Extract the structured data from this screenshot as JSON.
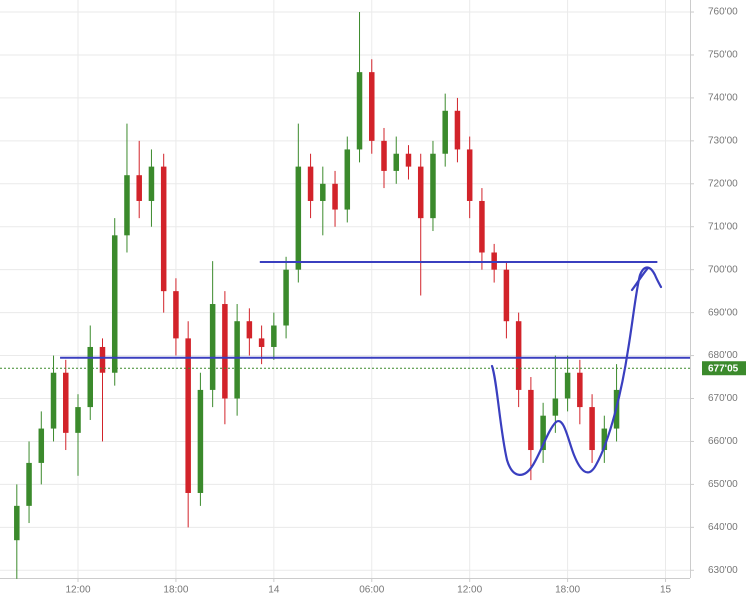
{
  "chart_data": {
    "type": "candlestick",
    "x": [
      8.25,
      9,
      9.75,
      10.5,
      11.25,
      12,
      12.75,
      13.5,
      14.25,
      15,
      15.75,
      16.5,
      17.25,
      18,
      18.75,
      19.5,
      20.25,
      21,
      21.75,
      22.5,
      23.25,
      24,
      24.75,
      25.5,
      26.25,
      27,
      27.75,
      28.5,
      29.25,
      30,
      30.75,
      31.5,
      32.25,
      33,
      33.75,
      34.5,
      35.25,
      36,
      36.75,
      37.5,
      38.25,
      39,
      39.75,
      40.5,
      41.25,
      42,
      42.75,
      43.5,
      44.25,
      45
    ],
    "open": [
      637,
      645,
      655,
      663,
      676,
      662,
      668,
      682,
      676,
      708,
      722,
      716,
      724,
      695,
      684,
      648,
      672,
      692,
      670,
      688,
      684,
      682,
      687,
      700,
      724,
      716,
      720,
      714,
      728,
      746,
      730,
      723,
      727,
      724,
      712,
      727,
      737,
      728,
      716,
      704,
      700,
      688,
      672,
      658,
      666,
      670,
      676,
      668,
      658,
      663
    ],
    "high": [
      650,
      660,
      667,
      680,
      679,
      671,
      687,
      684,
      712,
      734,
      730,
      728,
      727,
      698,
      688,
      676,
      702,
      695,
      692,
      691,
      687,
      690,
      703,
      734,
      727,
      724,
      723,
      731,
      760,
      749,
      733,
      731,
      729,
      727,
      730,
      741,
      740,
      731,
      719,
      706,
      702,
      690,
      675,
      669,
      680,
      680,
      679,
      671,
      666,
      678
    ],
    "low": [
      628,
      641,
      650,
      660,
      658,
      652,
      665,
      660,
      673,
      704,
      712,
      710,
      690,
      680,
      640,
      645,
      668,
      664,
      666,
      680,
      678,
      679,
      684,
      697,
      712,
      708,
      710,
      711,
      725,
      727,
      719,
      720,
      721,
      694,
      709,
      724,
      725,
      712,
      700,
      697,
      684,
      668,
      651,
      655,
      662,
      667,
      664,
      655,
      655,
      660
    ],
    "close": [
      645,
      655,
      663,
      676,
      662,
      668,
      682,
      676,
      708,
      722,
      716,
      724,
      695,
      684,
      648,
      672,
      692,
      670,
      688,
      684,
      682,
      687,
      700,
      724,
      716,
      720,
      714,
      728,
      746,
      730,
      723,
      727,
      724,
      712,
      727,
      737,
      728,
      716,
      704,
      700,
      688,
      672,
      658,
      666,
      670,
      676,
      668,
      658,
      663,
      672
    ],
    "up_color": "#3b8a2c",
    "down_color": "#d2232a",
    "xlim": [
      7.22,
      49.5
    ],
    "xticks": [
      {
        "value": 12,
        "label": "12:00"
      },
      {
        "value": 18,
        "label": "18:00"
      },
      {
        "value": 24,
        "label": "14"
      },
      {
        "value": 30,
        "label": "06:00"
      },
      {
        "value": 36,
        "label": "12:00"
      },
      {
        "value": 42,
        "label": "18:00"
      },
      {
        "value": 48,
        "label": "15"
      }
    ],
    "ylim": [
      628.2,
      762.8
    ],
    "yticks": [
      {
        "value": 630,
        "label": "630'00"
      },
      {
        "value": 640,
        "label": "640'00"
      },
      {
        "value": 650,
        "label": "650'00"
      },
      {
        "value": 660,
        "label": "660'00"
      },
      {
        "value": 670,
        "label": "670'00"
      },
      {
        "value": 680,
        "label": "680'00"
      },
      {
        "value": 690,
        "label": "690'00"
      },
      {
        "value": 700,
        "label": "700'00"
      },
      {
        "value": 710,
        "label": "710'00"
      },
      {
        "value": 720,
        "label": "720'00"
      },
      {
        "value": 730,
        "label": "730'00"
      },
      {
        "value": 740,
        "label": "740'00"
      },
      {
        "value": 750,
        "label": "750'00"
      },
      {
        "value": 760,
        "label": "760'00"
      }
    ],
    "last_price": {
      "value": 677.05,
      "label": "677'05"
    },
    "levels": [
      {
        "value": 701.8,
        "x": [
          23.14,
          47.5
        ]
      },
      {
        "value": 679.5,
        "x": [
          10.9,
          49.5
        ]
      }
    ],
    "level_color": "#3a3fbf",
    "grid": true
  }
}
